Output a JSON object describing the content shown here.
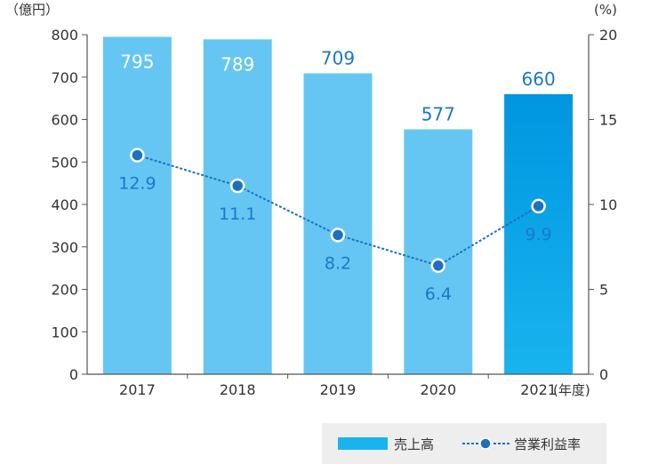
{
  "chart_data": {
    "type": "bar+line",
    "categories": [
      "2017",
      "2018",
      "2019",
      "2020",
      "2021"
    ],
    "series": [
      {
        "name": "売上高",
        "type": "bar",
        "axis": "left",
        "values": [
          795,
          789,
          709,
          577,
          660
        ]
      },
      {
        "name": "営業利益率",
        "type": "line",
        "axis": "right",
        "values": [
          12.9,
          11.1,
          8.2,
          6.4,
          9.9
        ]
      }
    ],
    "bar_labels": [
      "795",
      "789",
      "709",
      "577",
      "660"
    ],
    "line_labels": [
      "12.9",
      "11.1",
      "8.2",
      "6.4",
      "9.9"
    ],
    "left_axis": {
      "unit": "（億円）",
      "ylim": [
        0,
        800
      ],
      "ticks": [
        "0",
        "100",
        "200",
        "300",
        "400",
        "500",
        "600",
        "700",
        "800"
      ]
    },
    "right_axis": {
      "unit": "(%)",
      "ylim": [
        0,
        20
      ],
      "ticks": [
        "0",
        "5",
        "10",
        "15",
        "20"
      ]
    },
    "x_unit": "(年度)",
    "legend": {
      "position": "bottom-right",
      "items": [
        "売上高",
        "営業利益率"
      ]
    },
    "highlight_category": "2021",
    "colors": {
      "bar": "#66c6f3",
      "bar_highlight_top": "#0096e0",
      "bar_highlight_bottom": "#18b4ee",
      "line": "#1d6fc1",
      "marker_fill": "#1d6fc1",
      "marker_stroke": "#ffffff",
      "bar_label_light": "#ffffff",
      "bar_label_dark": "#1a78c8",
      "legend_bg": "#eeeeee",
      "axis": "#555555"
    },
    "grid": false
  }
}
